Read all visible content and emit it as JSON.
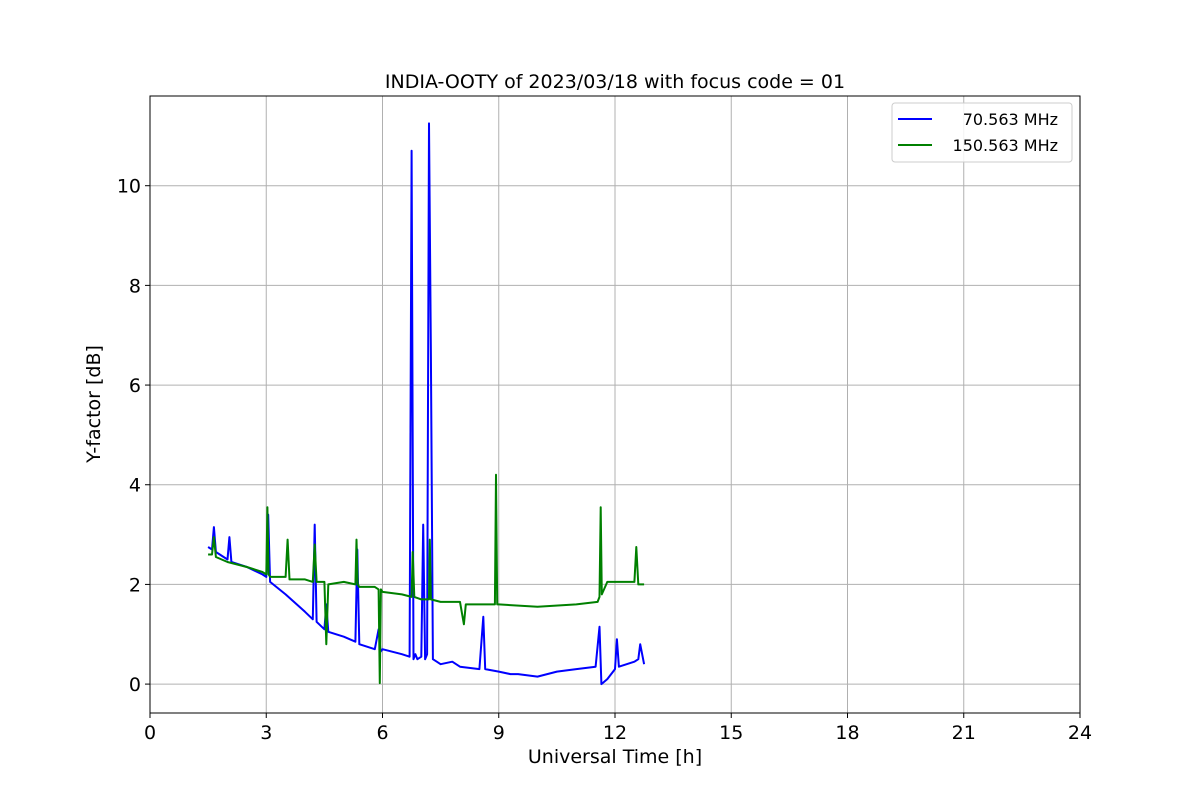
{
  "chart_data": {
    "type": "line",
    "title": "INDIA-OOTY of 2023/03/18 with focus code = 01",
    "xlabel": "Universal Time [h]",
    "ylabel": "Y-factor [dB]",
    "xlim": [
      0,
      24
    ],
    "ylim": [
      -0.58,
      11.8
    ],
    "xticks": [
      0,
      3,
      6,
      9,
      12,
      15,
      18,
      21,
      24
    ],
    "yticks": [
      0,
      2,
      4,
      6,
      8,
      10
    ],
    "grid": true,
    "legend_position": "top-right",
    "series": [
      {
        "name": "70.563 MHz",
        "color": "#0000ff",
        "x": [
          1.5,
          1.6,
          1.65,
          1.7,
          1.8,
          2.0,
          2.05,
          2.1,
          2.5,
          2.9,
          3.0,
          3.05,
          3.1,
          3.5,
          4.0,
          4.2,
          4.25,
          4.3,
          4.5,
          4.55,
          4.6,
          5.0,
          5.3,
          5.35,
          5.4,
          5.8,
          5.9,
          5.95,
          6.0,
          6.5,
          6.7,
          6.75,
          6.8,
          6.85,
          6.9,
          7.0,
          7.05,
          7.1,
          7.15,
          7.2,
          7.25,
          7.3,
          7.4,
          7.5,
          7.8,
          8.0,
          8.5,
          8.6,
          8.65,
          9.0,
          9.3,
          9.5,
          10.0,
          10.5,
          11.0,
          11.5,
          11.6,
          11.65,
          11.8,
          12.0,
          12.05,
          12.1,
          12.5,
          12.6,
          12.65,
          12.75
        ],
        "y": [
          2.75,
          2.7,
          3.15,
          2.65,
          2.6,
          2.5,
          2.95,
          2.45,
          2.35,
          2.2,
          2.15,
          3.4,
          2.05,
          1.8,
          1.45,
          1.3,
          3.2,
          1.25,
          1.1,
          1.6,
          1.05,
          0.95,
          0.85,
          2.7,
          0.8,
          0.7,
          1.1,
          0.65,
          0.7,
          0.6,
          0.55,
          10.7,
          0.5,
          0.6,
          0.5,
          0.55,
          3.2,
          0.5,
          0.6,
          11.25,
          6.6,
          0.5,
          0.45,
          0.4,
          0.45,
          0.35,
          0.3,
          1.35,
          0.3,
          0.25,
          0.2,
          0.2,
          0.15,
          0.25,
          0.3,
          0.35,
          1.15,
          0.0,
          0.1,
          0.3,
          0.9,
          0.35,
          0.45,
          0.5,
          0.8,
          0.4
        ]
      },
      {
        "name": "150.563 MHz",
        "color": "#008000",
        "x": [
          1.5,
          1.6,
          1.65,
          1.7,
          2.0,
          2.5,
          2.9,
          3.0,
          3.03,
          3.06,
          3.1,
          3.5,
          3.55,
          3.6,
          4.0,
          4.2,
          4.25,
          4.3,
          4.5,
          4.55,
          4.6,
          5.0,
          5.3,
          5.33,
          5.36,
          5.4,
          5.8,
          5.9,
          5.93,
          5.96,
          6.0,
          6.5,
          6.75,
          6.78,
          6.82,
          7.0,
          7.2,
          7.22,
          7.25,
          7.5,
          8.0,
          8.1,
          8.15,
          8.9,
          8.93,
          8.96,
          9.0,
          10.0,
          11.0,
          11.55,
          11.6,
          11.63,
          11.66,
          11.8,
          12.0,
          12.5,
          12.55,
          12.6,
          12.75
        ],
        "y": [
          2.6,
          2.6,
          2.95,
          2.55,
          2.45,
          2.35,
          2.25,
          2.2,
          3.55,
          2.2,
          2.15,
          2.15,
          2.9,
          2.1,
          2.1,
          2.05,
          2.8,
          2.05,
          2.05,
          0.8,
          2.0,
          2.05,
          2.0,
          2.9,
          2.0,
          1.95,
          1.95,
          1.9,
          0.02,
          1.9,
          1.85,
          1.8,
          1.75,
          2.65,
          1.75,
          1.7,
          1.7,
          2.9,
          1.7,
          1.65,
          1.65,
          1.2,
          1.6,
          1.6,
          4.2,
          1.6,
          1.6,
          1.55,
          1.6,
          1.65,
          1.75,
          3.55,
          1.8,
          2.05,
          2.05,
          2.05,
          2.75,
          2.0,
          2.0
        ]
      }
    ]
  }
}
